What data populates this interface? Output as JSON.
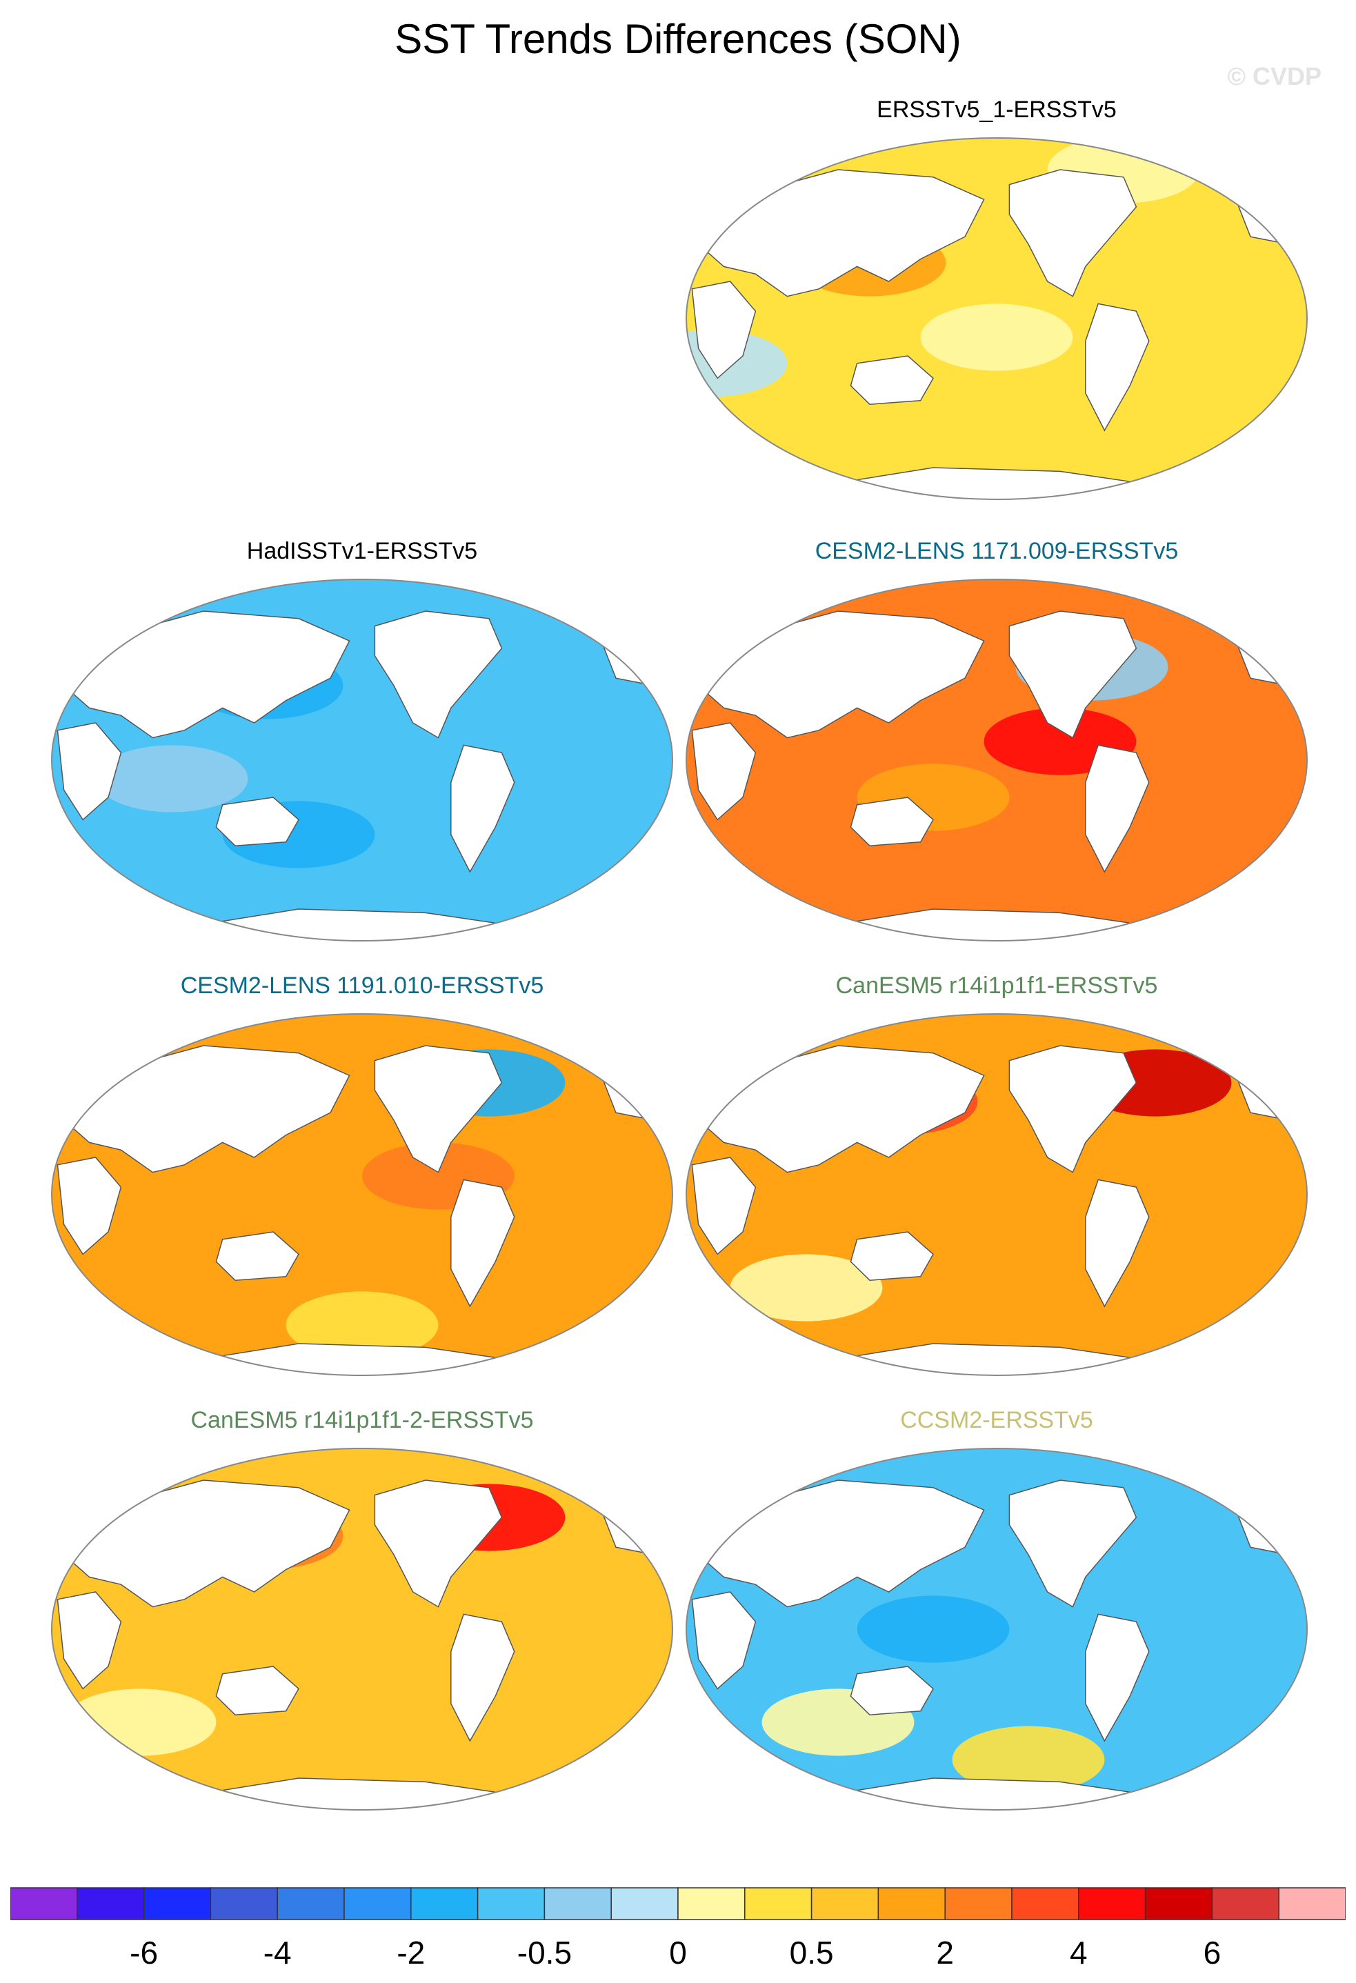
{
  "title": "SST Trends Differences (SON)",
  "watermark": "© CVDP",
  "panels": [
    {
      "label": "ERSSTv5_1-ERSSTv5",
      "color": "#000000",
      "base_level": 11,
      "blobs": [
        [
          0.05,
          0.62,
          -2
        ],
        [
          0.5,
          0.55,
          -1
        ],
        [
          0.7,
          0.1,
          -1
        ],
        [
          0.3,
          0.35,
          2
        ]
      ]
    },
    {
      "label": "HadISSTv1-ERSSTv5",
      "color": "#000000",
      "base_level": 7,
      "blobs": [
        [
          0.35,
          0.3,
          -1
        ],
        [
          0.4,
          0.7,
          -1
        ],
        [
          0.6,
          0.45,
          0
        ],
        [
          0.2,
          0.55,
          1
        ]
      ]
    },
    {
      "label": "CESM2-LENS 1171.009-ERSSTv5",
      "color": "#0b6a87",
      "base_level": 14,
      "blobs": [
        [
          0.6,
          0.45,
          2
        ],
        [
          0.65,
          0.25,
          -6
        ],
        [
          0.4,
          0.6,
          -1
        ]
      ]
    },
    {
      "label": "CESM2-LENS 1191.010-ERSSTv5",
      "color": "#0b6a87",
      "base_level": 13,
      "blobs": [
        [
          0.62,
          0.45,
          1
        ],
        [
          0.7,
          0.2,
          -7
        ],
        [
          0.5,
          0.85,
          -2
        ]
      ]
    },
    {
      "label": "CanESM5 r14i1p1f1-ERSSTv5",
      "color": "#5a8a5a",
      "base_level": 13,
      "blobs": [
        [
          0.35,
          0.25,
          2
        ],
        [
          0.75,
          0.2,
          4
        ],
        [
          0.2,
          0.75,
          -3
        ]
      ]
    },
    {
      "label": "CanESM5 r14i1p1f1-2-ERSSTv5",
      "color": "#5a8a5a",
      "base_level": 12,
      "blobs": [
        [
          0.35,
          0.25,
          2
        ],
        [
          0.7,
          0.2,
          4
        ],
        [
          0.15,
          0.75,
          -2
        ]
      ]
    },
    {
      "label": "CCSM2-ERSSTv5",
      "color": "#c8c070",
      "base_level": 7,
      "blobs": [
        [
          0.4,
          0.5,
          -1
        ],
        [
          0.55,
          0.85,
          4
        ],
        [
          0.25,
          0.75,
          3
        ]
      ]
    }
  ],
  "colorbar": {
    "colors": [
      "#8a2be2",
      "#3a16f0",
      "#1a2bff",
      "#3d5ad8",
      "#337de8",
      "#2a93f5",
      "#1fb0f5",
      "#4cc3f5",
      "#90cdee",
      "#b8e3f7",
      "#fff9a6",
      "#ffe23f",
      "#ffc52a",
      "#ffa315",
      "#ff7d1e",
      "#ff4a1e",
      "#ff0a0a",
      "#d20000",
      "#db3838",
      "#ffb0b0"
    ],
    "tick_labels": [
      "-6",
      "-4",
      "-2",
      "-0.5",
      "0",
      "0.5",
      "2",
      "4",
      "6"
    ]
  }
}
